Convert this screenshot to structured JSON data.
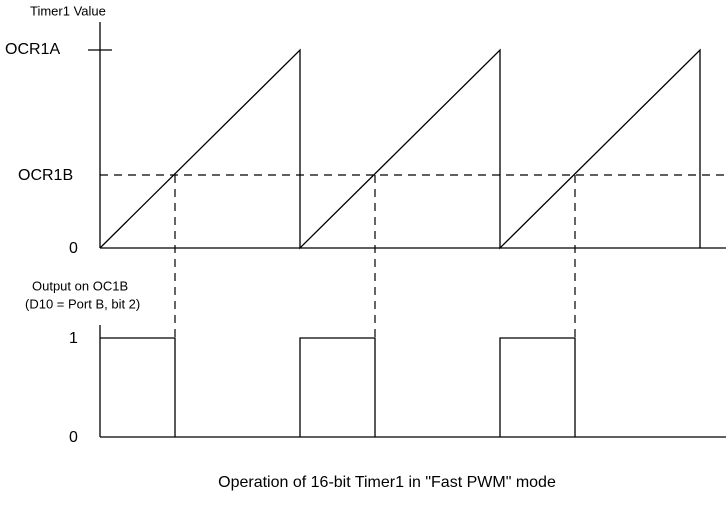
{
  "timer_plot": {
    "title": "Timer1 Value",
    "levels": {
      "top": "OCR1A",
      "compare": "OCR1B",
      "bottom": "0"
    }
  },
  "output_plot": {
    "title_lines": [
      "Output on OC1B",
      "(D10 = Port B, bit 2)"
    ],
    "levels": {
      "high": "1",
      "low": "0"
    }
  },
  "caption": "Operation of 16-bit Timer1 in \"Fast PWM\" mode"
}
